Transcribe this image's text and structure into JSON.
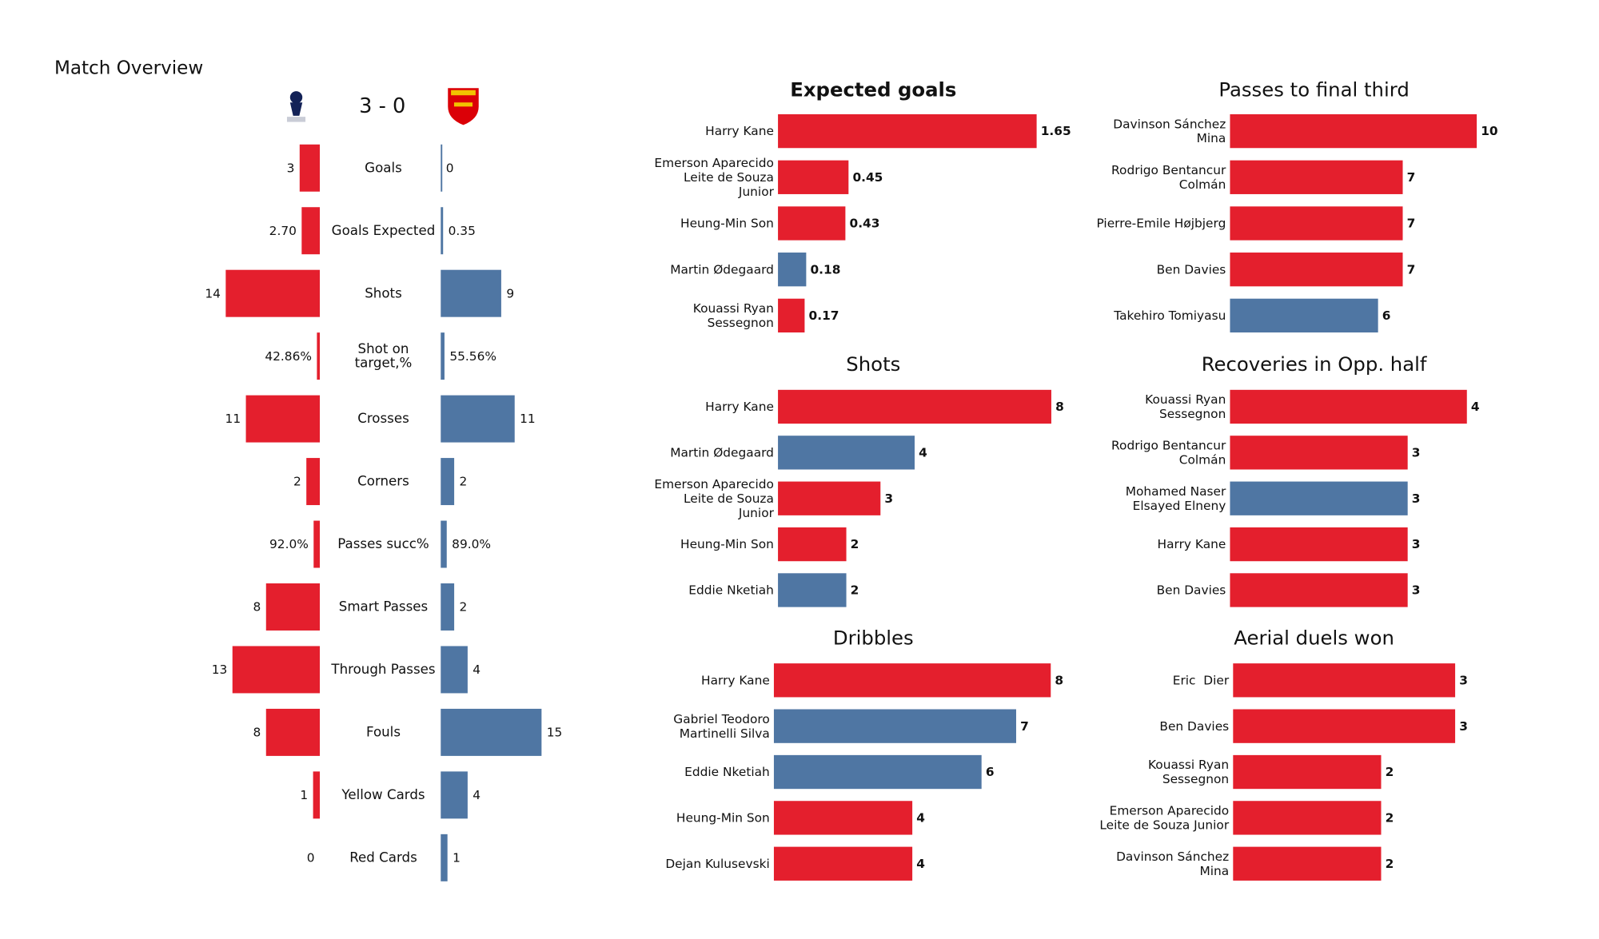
{
  "chart_data": [
    {
      "type": "butterfly",
      "title": "Match Overview",
      "score": "3 - 0",
      "categories": [
        "Goals",
        "Goals Expected",
        "Shots",
        "Shot on\ntarget,%",
        "Crosses",
        "Corners",
        "Passes succ%",
        "Smart Passes",
        "Through Passes",
        "Fouls",
        "Yellow Cards",
        "Red Cards"
      ],
      "series": [
        {
          "color": "#e41f2d",
          "values": [
            3,
            2.7,
            14,
            42.86,
            11,
            2,
            92.0,
            8,
            13,
            8,
            1,
            0
          ],
          "value_labels": [
            "3",
            "2.70",
            "14",
            "42.86%",
            "11",
            "2",
            "92.0%",
            "8",
            "13",
            "8",
            "1",
            "0"
          ]
        },
        {
          "color": "#4f76a3",
          "values": [
            0,
            0.35,
            9,
            55.56,
            11,
            2,
            89.0,
            2,
            4,
            15,
            4,
            1
          ],
          "value_labels": [
            "0",
            "0.35",
            "9",
            "55.56%",
            "11",
            "2",
            "89.0%",
            "2",
            "4",
            "15",
            "4",
            "1"
          ]
        }
      ],
      "xlim": [
        0,
        18
      ]
    },
    {
      "type": "hbar",
      "title": "Expected goals",
      "title_bold": true,
      "categories": [
        "Harry Kane",
        "Emerson Aparecido\nLeite de Souza\nJunior",
        "Heung-Min Son",
        "Martin Ødegaard",
        "Kouassi Ryan\nSessegnon"
      ],
      "values": [
        1.65,
        0.45,
        0.43,
        0.18,
        0.17
      ],
      "colors": [
        "#e41f2d",
        "#e41f2d",
        "#e41f2d",
        "#4f76a3",
        "#e41f2d"
      ],
      "xlim": [
        0,
        1.7
      ]
    },
    {
      "type": "hbar",
      "title": "Shots",
      "categories": [
        "Harry Kane",
        "Martin Ødegaard",
        "Emerson Aparecido\nLeite de Souza\nJunior",
        "Heung-Min Son",
        "Eddie Nketiah"
      ],
      "values": [
        8,
        4,
        3,
        2,
        2
      ],
      "colors": [
        "#e41f2d",
        "#4f76a3",
        "#e41f2d",
        "#e41f2d",
        "#4f76a3"
      ],
      "xlim": [
        0,
        7.8
      ]
    },
    {
      "type": "hbar",
      "title": "Dribbles",
      "categories": [
        "Harry Kane",
        "Gabriel Teodoro\nMartinelli Silva",
        "Eddie Nketiah",
        "Heung-Min Son",
        "Dejan Kulusevski"
      ],
      "values": [
        8,
        7,
        6,
        4,
        4
      ],
      "colors": [
        "#e41f2d",
        "#4f76a3",
        "#4f76a3",
        "#e41f2d",
        "#e41f2d"
      ],
      "xlim": [
        0,
        7.7
      ]
    },
    {
      "type": "hbar",
      "title": "Passes to final third",
      "categories": [
        "Davinson Sánchez\nMina",
        "Rodrigo Bentancur\nColmán",
        "Pierre-Emile Højbjerg",
        "Ben Davies",
        "Takehiro Tomiyasu"
      ],
      "values": [
        10,
        7,
        7,
        7,
        6
      ],
      "colors": [
        "#e41f2d",
        "#e41f2d",
        "#e41f2d",
        "#e41f2d",
        "#4f76a3"
      ],
      "xlim": [
        0,
        10.8
      ]
    },
    {
      "type": "hbar",
      "title": "Recoveries in Opp. half",
      "categories": [
        "Kouassi Ryan\nSessegnon",
        "Rodrigo Bentancur\nColmán",
        "Mohamed Naser\nElsayed Elneny",
        "Harry Kane",
        "Ben Davies"
      ],
      "values": [
        4,
        3,
        3,
        3,
        3
      ],
      "colors": [
        "#e41f2d",
        "#e41f2d",
        "#4f76a3",
        "#e41f2d",
        "#e41f2d"
      ],
      "xlim": [
        0,
        4.5
      ]
    },
    {
      "type": "hbar",
      "title": "Aerial duels won",
      "categories": [
        "Eric  Dier",
        "Ben Davies",
        "Kouassi Ryan\nSessegnon",
        "Emerson Aparecido\nLeite de Souza Junior",
        "Davinson Sánchez\nMina"
      ],
      "values": [
        3,
        3,
        2,
        2,
        2
      ],
      "colors": [
        "#e41f2d",
        "#e41f2d",
        "#e41f2d",
        "#e41f2d",
        "#e41f2d"
      ],
      "xlim": [
        0,
        3.6
      ]
    }
  ]
}
